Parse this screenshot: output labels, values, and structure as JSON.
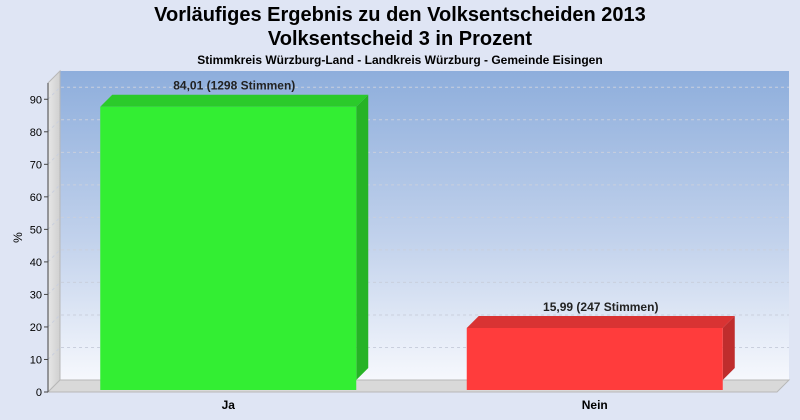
{
  "header": {
    "title_line1": "Vorläufiges Ergebnis zu den Volksentscheiden 2013",
    "title_line2": "Volksentscheid 3 in Prozent",
    "subtitle": "Stimmkreis Würzburg-Land - Landkreis Würzburg - Gemeinde Eisingen"
  },
  "chart_data": {
    "type": "bar",
    "ylabel": "%",
    "ylim": [
      0,
      95
    ],
    "yticks": [
      0,
      10,
      20,
      30,
      40,
      50,
      60,
      70,
      80,
      90
    ],
    "grid": true,
    "categories": [
      "Ja",
      "Nein"
    ],
    "values": [
      84.01,
      15.99
    ],
    "data_labels": [
      "84,01 (1298 Stimmen)",
      "15,99 (247 Stimmen)"
    ],
    "colors": [
      "#33ee33",
      "#ff3c3c"
    ]
  }
}
